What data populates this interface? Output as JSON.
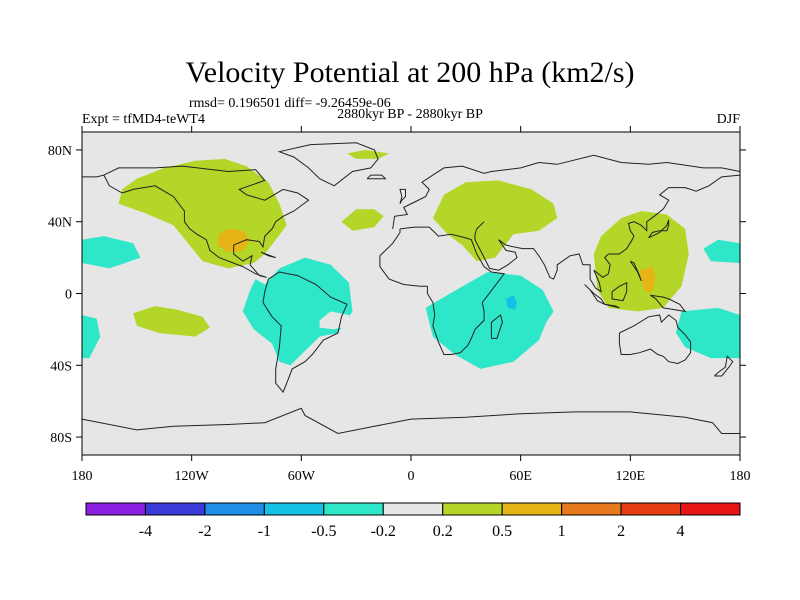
{
  "chart_data": {
    "type": "heatmap",
    "title": "Velocity Potential at 200 hPa (km2/s)",
    "stats": "rmsd= 0.196501  diff= -9.26459e-06",
    "left_label": "Expt = tfMD4-teWT4",
    "center_label": "2880kyr BP - 2880kyr BP",
    "right_label": "DJF",
    "xlim": [
      -180,
      180
    ],
    "ylim": [
      -90,
      90
    ],
    "x_ticks": [
      {
        "value": -180,
        "label": "180"
      },
      {
        "value": -120,
        "label": "120W"
      },
      {
        "value": -60,
        "label": "60W"
      },
      {
        "value": 0,
        "label": "0"
      },
      {
        "value": 60,
        "label": "60E"
      },
      {
        "value": 120,
        "label": "120E"
      },
      {
        "value": 180,
        "label": "180"
      }
    ],
    "y_ticks": [
      {
        "value": 80,
        "label": "80N"
      },
      {
        "value": 40,
        "label": "40N"
      },
      {
        "value": 0,
        "label": "0"
      },
      {
        "value": -40,
        "label": "40S"
      },
      {
        "value": -80,
        "label": "80S"
      }
    ],
    "colorbar": {
      "levels": [
        "-4",
        "-2",
        "-1",
        "-0.5",
        "-0.2",
        "0.2",
        "0.5",
        "1",
        "2",
        "4"
      ],
      "colors": [
        "#8a1fe0",
        "#3a3ad8",
        "#1e8ee6",
        "#14c0e6",
        "#2ee6c8",
        "#e6e6e6",
        "#b4d628",
        "#e6b414",
        "#e6781e",
        "#e63c14",
        "#e61414"
      ]
    },
    "background_color": "#e6e6e6",
    "regions": [
      {
        "name": "north-america-positive",
        "level": "0.2 to 0.5",
        "color": "#b4d628",
        "outline": [
          [
            -158,
            58
          ],
          [
            -150,
            64
          ],
          [
            -135,
            70
          ],
          [
            -118,
            74
          ],
          [
            -102,
            75
          ],
          [
            -90,
            71
          ],
          [
            -78,
            62
          ],
          [
            -72,
            50
          ],
          [
            -68,
            38
          ],
          [
            -74,
            30
          ],
          [
            -80,
            22
          ],
          [
            -86,
            17
          ],
          [
            -100,
            14
          ],
          [
            -114,
            18
          ],
          [
            -122,
            28
          ],
          [
            -130,
            38
          ],
          [
            -146,
            45
          ],
          [
            -160,
            50
          ]
        ]
      },
      {
        "name": "north-america-strong",
        "level": "0.5 to 1",
        "color": "#e6b414",
        "outline": [
          [
            -105,
            33
          ],
          [
            -100,
            36
          ],
          [
            -92,
            35
          ],
          [
            -88,
            30
          ],
          [
            -92,
            24
          ],
          [
            -100,
            23
          ],
          [
            -106,
            27
          ]
        ]
      },
      {
        "name": "arctic-positive",
        "level": "0.2 to 0.5",
        "color": "#b4d628",
        "outline": [
          [
            -35,
            78
          ],
          [
            -25,
            80
          ],
          [
            -12,
            78
          ],
          [
            -18,
            75
          ],
          [
            -30,
            75
          ]
        ]
      },
      {
        "name": "north-atlantic-positive",
        "level": "0.2 to 0.5",
        "color": "#b4d628",
        "outline": [
          [
            -38,
            40
          ],
          [
            -30,
            47
          ],
          [
            -20,
            47
          ],
          [
            -15,
            43
          ],
          [
            -20,
            37
          ],
          [
            -32,
            35
          ]
        ]
      },
      {
        "name": "eurasia-positive",
        "level": "0.2 to 0.5",
        "color": "#b4d628",
        "outline": [
          [
            12,
            42
          ],
          [
            18,
            55
          ],
          [
            30,
            62
          ],
          [
            48,
            63
          ],
          [
            66,
            58
          ],
          [
            78,
            50
          ],
          [
            80,
            42
          ],
          [
            70,
            35
          ],
          [
            56,
            33
          ],
          [
            46,
            20
          ],
          [
            36,
            18
          ],
          [
            28,
            27
          ],
          [
            20,
            33
          ]
        ]
      },
      {
        "name": "maritime-continent-positive",
        "level": "0.2 to 0.5",
        "color": "#b4d628",
        "outline": [
          [
            100,
            22
          ],
          [
            104,
            32
          ],
          [
            115,
            42
          ],
          [
            126,
            46
          ],
          [
            140,
            44
          ],
          [
            150,
            36
          ],
          [
            152,
            22
          ],
          [
            148,
            4
          ],
          [
            138,
            -8
          ],
          [
            124,
            -10
          ],
          [
            108,
            -8
          ],
          [
            102,
            2
          ]
        ]
      },
      {
        "name": "maritime-continent-strong",
        "level": "0.5 to 1",
        "color": "#e6b414",
        "outline": [
          [
            125,
            13
          ],
          [
            132,
            15
          ],
          [
            134,
            8
          ],
          [
            132,
            1
          ],
          [
            128,
            1
          ],
          [
            126,
            7
          ]
        ]
      },
      {
        "name": "central-pacific-positive",
        "level": "0.2 to 0.5",
        "color": "#b4d628",
        "outline": [
          [
            -152,
            -11
          ],
          [
            -140,
            -7
          ],
          [
            -128,
            -9
          ],
          [
            -114,
            -13
          ],
          [
            -110,
            -19
          ],
          [
            -118,
            -24
          ],
          [
            -138,
            -22
          ],
          [
            -150,
            -18
          ]
        ]
      },
      {
        "name": "east-pacific-negative",
        "level": "-0.5 to -0.2",
        "color": "#2ee6c8",
        "outline": [
          [
            -180,
            30
          ],
          [
            -168,
            32
          ],
          [
            -152,
            28
          ],
          [
            -148,
            20
          ],
          [
            -165,
            14
          ],
          [
            -180,
            17
          ]
        ]
      },
      {
        "name": "dateline-east-negative",
        "level": "-0.5 to -0.2",
        "color": "#2ee6c8",
        "outline": [
          [
            180,
            28
          ],
          [
            168,
            30
          ],
          [
            160,
            25
          ],
          [
            164,
            18
          ],
          [
            180,
            17
          ]
        ]
      },
      {
        "name": "south-america-negative",
        "level": "-0.5 to -0.2",
        "color": "#2ee6c8",
        "outline": [
          [
            -85,
            8
          ],
          [
            -80,
            5
          ],
          [
            -72,
            14
          ],
          [
            -58,
            20
          ],
          [
            -44,
            16
          ],
          [
            -34,
            6
          ],
          [
            -32,
            -10
          ],
          [
            -40,
            -22
          ],
          [
            -50,
            -24
          ],
          [
            -58,
            -32
          ],
          [
            -66,
            -40
          ],
          [
            -72,
            -38
          ],
          [
            -76,
            -28
          ],
          [
            -86,
            -20
          ],
          [
            -92,
            -10
          ],
          [
            -88,
            2
          ]
        ]
      },
      {
        "name": "south-america-hole",
        "level": "-0.2 to 0.2",
        "color": "#e6e6e6",
        "outline": [
          [
            -50,
            -15
          ],
          [
            -44,
            -10
          ],
          [
            -34,
            -12
          ],
          [
            -34,
            -18
          ],
          [
            -42,
            -20
          ],
          [
            -50,
            -19
          ]
        ]
      },
      {
        "name": "indian-ocean-negative",
        "level": "-0.5 to -0.2",
        "color": "#2ee6c8",
        "outline": [
          [
            8,
            -8
          ],
          [
            18,
            -2
          ],
          [
            30,
            5
          ],
          [
            42,
            12
          ],
          [
            60,
            10
          ],
          [
            72,
            2
          ],
          [
            78,
            -10
          ],
          [
            74,
            -16
          ],
          [
            70,
            -26
          ],
          [
            56,
            -38
          ],
          [
            38,
            -42
          ],
          [
            24,
            -34
          ],
          [
            12,
            -24
          ]
        ]
      },
      {
        "name": "indian-ocean-strong-negative",
        "level": "-1 to -0.5",
        "color": "#14c0e6",
        "outline": [
          [
            52,
            -3
          ],
          [
            56,
            -1
          ],
          [
            58,
            -5
          ],
          [
            57,
            -9
          ],
          [
            53,
            -8
          ]
        ]
      },
      {
        "name": "australia-negative",
        "level": "-0.5 to -0.2",
        "color": "#2ee6c8",
        "outline": [
          [
            148,
            -10
          ],
          [
            168,
            -8
          ],
          [
            180,
            -12
          ],
          [
            180,
            -36
          ],
          [
            164,
            -36
          ],
          [
            150,
            -30
          ],
          [
            145,
            -22
          ]
        ]
      },
      {
        "name": "dateline-west-negative",
        "level": "-0.5 to -0.2",
        "color": "#2ee6c8",
        "outline": [
          [
            -180,
            -12
          ],
          [
            -172,
            -14
          ],
          [
            -170,
            -24
          ],
          [
            -176,
            -36
          ],
          [
            -180,
            -36
          ]
        ]
      }
    ]
  }
}
